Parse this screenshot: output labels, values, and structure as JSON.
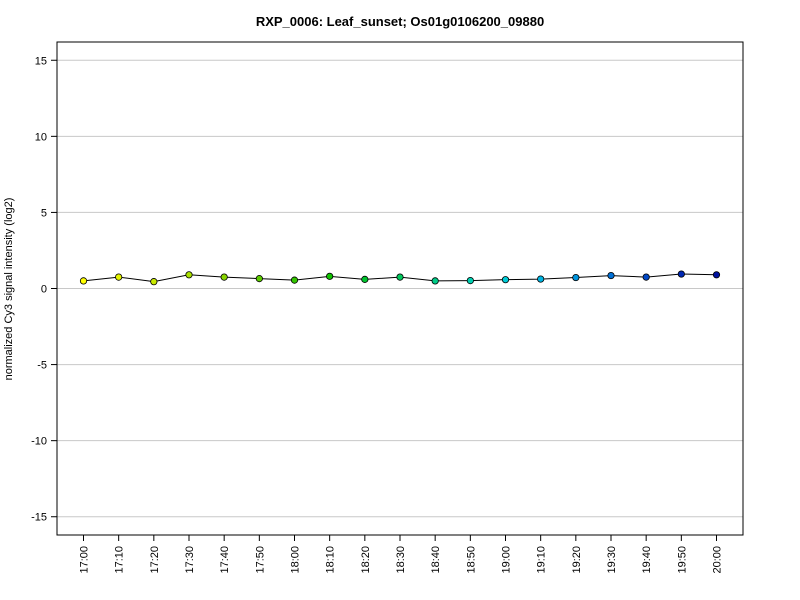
{
  "chart_data": {
    "type": "line",
    "title": "RXP_0006: Leaf_sunset; Os01g0106200_09880",
    "xlabel": "",
    "ylabel": "normalized Cy3 signal intensity (log2)",
    "ylim": [
      -16.2,
      16.2
    ],
    "yticks": [
      15,
      10,
      5,
      0,
      -5,
      -10,
      -15
    ],
    "ytick_labels": [
      "15",
      "10",
      "5",
      "0",
      "-5",
      "-10",
      "-15"
    ],
    "grid": true,
    "categories": [
      "17:00",
      "17:10",
      "17:20",
      "17:30",
      "17:40",
      "17:50",
      "18:00",
      "18:10",
      "18:20",
      "18:30",
      "18:40",
      "18:50",
      "19:00",
      "19:10",
      "19:20",
      "19:30",
      "19:40",
      "19:50",
      "20:00"
    ],
    "series": [
      {
        "values": [
          0.5,
          0.75,
          0.45,
          0.9,
          0.75,
          0.65,
          0.55,
          0.8,
          0.6,
          0.75,
          0.5,
          0.52,
          0.58,
          0.62,
          0.72,
          0.85,
          0.75,
          0.95,
          0.9
        ],
        "point_colors": [
          "#ffff00",
          "#e4f400",
          "#c9ea00",
          "#a9e000",
          "#88d400",
          "#5ccb00",
          "#33c400",
          "#10c200",
          "#00c32e",
          "#00c75c",
          "#00cb87",
          "#00cfb1",
          "#00cbd6",
          "#00b5e2",
          "#0094dd",
          "#0070d6",
          "#0048c6",
          "#0028b3",
          "#00129e"
        ],
        "line_color": "#000000"
      }
    ]
  }
}
